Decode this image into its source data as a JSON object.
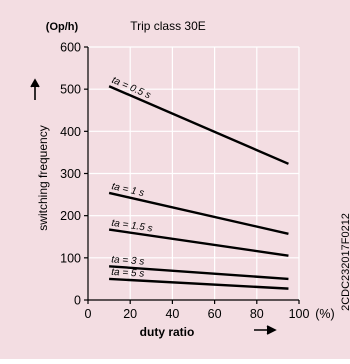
{
  "colors": {
    "background": "#f3dde2",
    "grid": "#ffffff",
    "line": "#000000"
  },
  "chart_data": {
    "type": "line",
    "title": "Trip class 30E",
    "y_unit": "(Op/h)",
    "ylabel": "switching frequency",
    "xlabel": "duty ratio",
    "x_unit": "(%)",
    "xlim": [
      0,
      100
    ],
    "ylim": [
      0,
      600
    ],
    "x_ticks": [
      0,
      20,
      40,
      60,
      80,
      100
    ],
    "y_ticks": [
      0,
      100,
      200,
      300,
      400,
      500,
      600
    ],
    "grid": true,
    "series": [
      {
        "name": "ta = 0.5 s",
        "x": [
          10,
          95
        ],
        "y": [
          507,
          323
        ]
      },
      {
        "name": "ta = 1 s",
        "x": [
          10,
          95
        ],
        "y": [
          254,
          157
        ]
      },
      {
        "name": "ta = 1.5 s",
        "x": [
          10,
          95
        ],
        "y": [
          167,
          105
        ]
      },
      {
        "name": "ta = 3 s",
        "x": [
          10,
          95
        ],
        "y": [
          80,
          50
        ]
      },
      {
        "name": "ta = 5 s",
        "x": [
          10,
          95
        ],
        "y": [
          50,
          27
        ]
      }
    ],
    "watermark": "2CDC232017F0212"
  }
}
